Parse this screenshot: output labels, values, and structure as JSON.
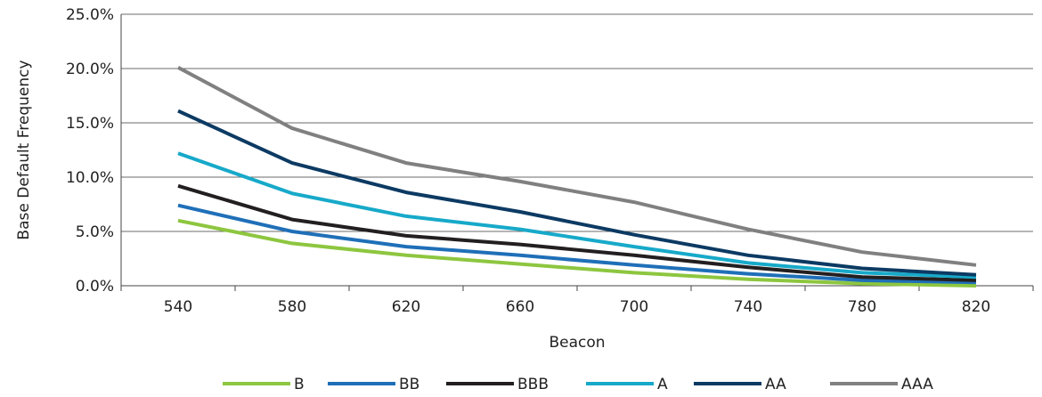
{
  "chart_data": {
    "type": "line",
    "xlabel": "Beacon",
    "ylabel": "Base Default Frequency",
    "x": [
      540,
      580,
      620,
      660,
      700,
      740,
      780,
      820
    ],
    "ylim": [
      0,
      0.25
    ],
    "yticks": [
      "0.0%",
      "5.0%",
      "10.0%",
      "15.0%",
      "20.0%",
      "25.0%"
    ],
    "xticks": [
      "540",
      "580",
      "620",
      "660",
      "700",
      "740",
      "780",
      "820"
    ],
    "grid": "horizontal",
    "legend_position": "bottom",
    "series": [
      {
        "name": "B",
        "color": "#8dc63f",
        "values": [
          0.06,
          0.039,
          0.028,
          0.02,
          0.012,
          0.006,
          0.002,
          0.0
        ]
      },
      {
        "name": "BB",
        "color": "#1f6fb8",
        "values": [
          0.074,
          0.05,
          0.036,
          0.028,
          0.019,
          0.011,
          0.005,
          0.003
        ]
      },
      {
        "name": "BBB",
        "color": "#231f20",
        "values": [
          0.092,
          0.061,
          0.046,
          0.038,
          0.028,
          0.017,
          0.008,
          0.005
        ]
      },
      {
        "name": "A",
        "color": "#17a9c9",
        "values": [
          0.122,
          0.085,
          0.064,
          0.052,
          0.036,
          0.021,
          0.012,
          0.008
        ]
      },
      {
        "name": "AA",
        "color": "#0c3a63",
        "values": [
          0.161,
          0.113,
          0.086,
          0.068,
          0.047,
          0.028,
          0.016,
          0.01
        ]
      },
      {
        "name": "AAA",
        "color": "#808080",
        "values": [
          0.201,
          0.145,
          0.113,
          0.096,
          0.077,
          0.052,
          0.031,
          0.019
        ]
      }
    ]
  }
}
